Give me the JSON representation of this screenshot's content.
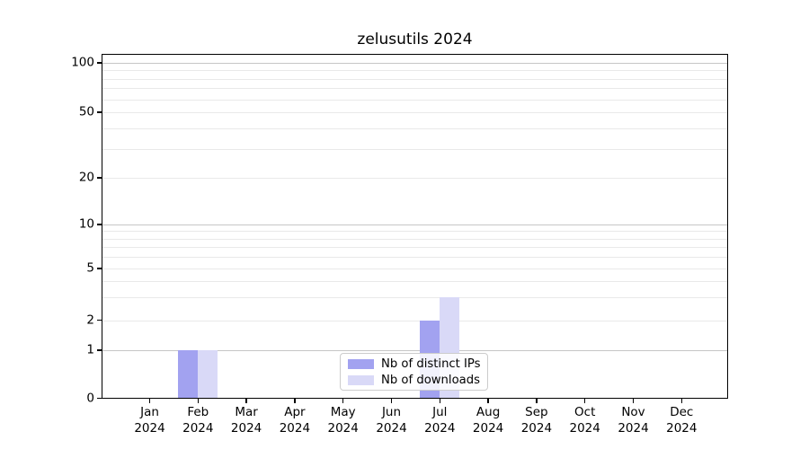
{
  "chart_data": {
    "type": "bar",
    "title": "zelusutils 2024",
    "categories": [
      "Jan",
      "Feb",
      "Mar",
      "Apr",
      "May",
      "Jun",
      "Jul",
      "Aug",
      "Sep",
      "Oct",
      "Nov",
      "Dec"
    ],
    "year_label": "2024",
    "series": [
      {
        "name": "Nb of distinct IPs",
        "color": "#a2a2f0",
        "values": [
          0,
          1,
          0,
          0,
          0,
          0,
          2,
          0,
          0,
          0,
          0,
          0
        ]
      },
      {
        "name": "Nb of downloads",
        "color": "#d9d9f7",
        "values": [
          0,
          1,
          0,
          0,
          0,
          0,
          3,
          0,
          0,
          0,
          0,
          0
        ]
      }
    ],
    "xlabel": "",
    "ylabel": "",
    "y_ticks": [
      0,
      1,
      2,
      5,
      10,
      20,
      50,
      100
    ],
    "y_major_grid_values": [
      1,
      10,
      100
    ],
    "y_minor_grid_values": [
      2,
      3,
      4,
      5,
      6,
      7,
      8,
      9,
      20,
      30,
      40,
      50,
      60,
      70,
      80,
      90
    ],
    "yscale": "symlog-like (linear below 1, logarithmic above)",
    "ylim": [
      0,
      113
    ],
    "grid": "horizontal",
    "legend_position": "lower center inside plot"
  },
  "colors": {
    "background": "#ffffff",
    "frame": "#000000",
    "text": "#000000",
    "grid_major": "#c6c6c6",
    "grid_minor": "#e9e9e9",
    "legend_border": "#cccccc",
    "series_distinct_ips": "#a2a2f0",
    "series_downloads": "#d9d9f7"
  }
}
